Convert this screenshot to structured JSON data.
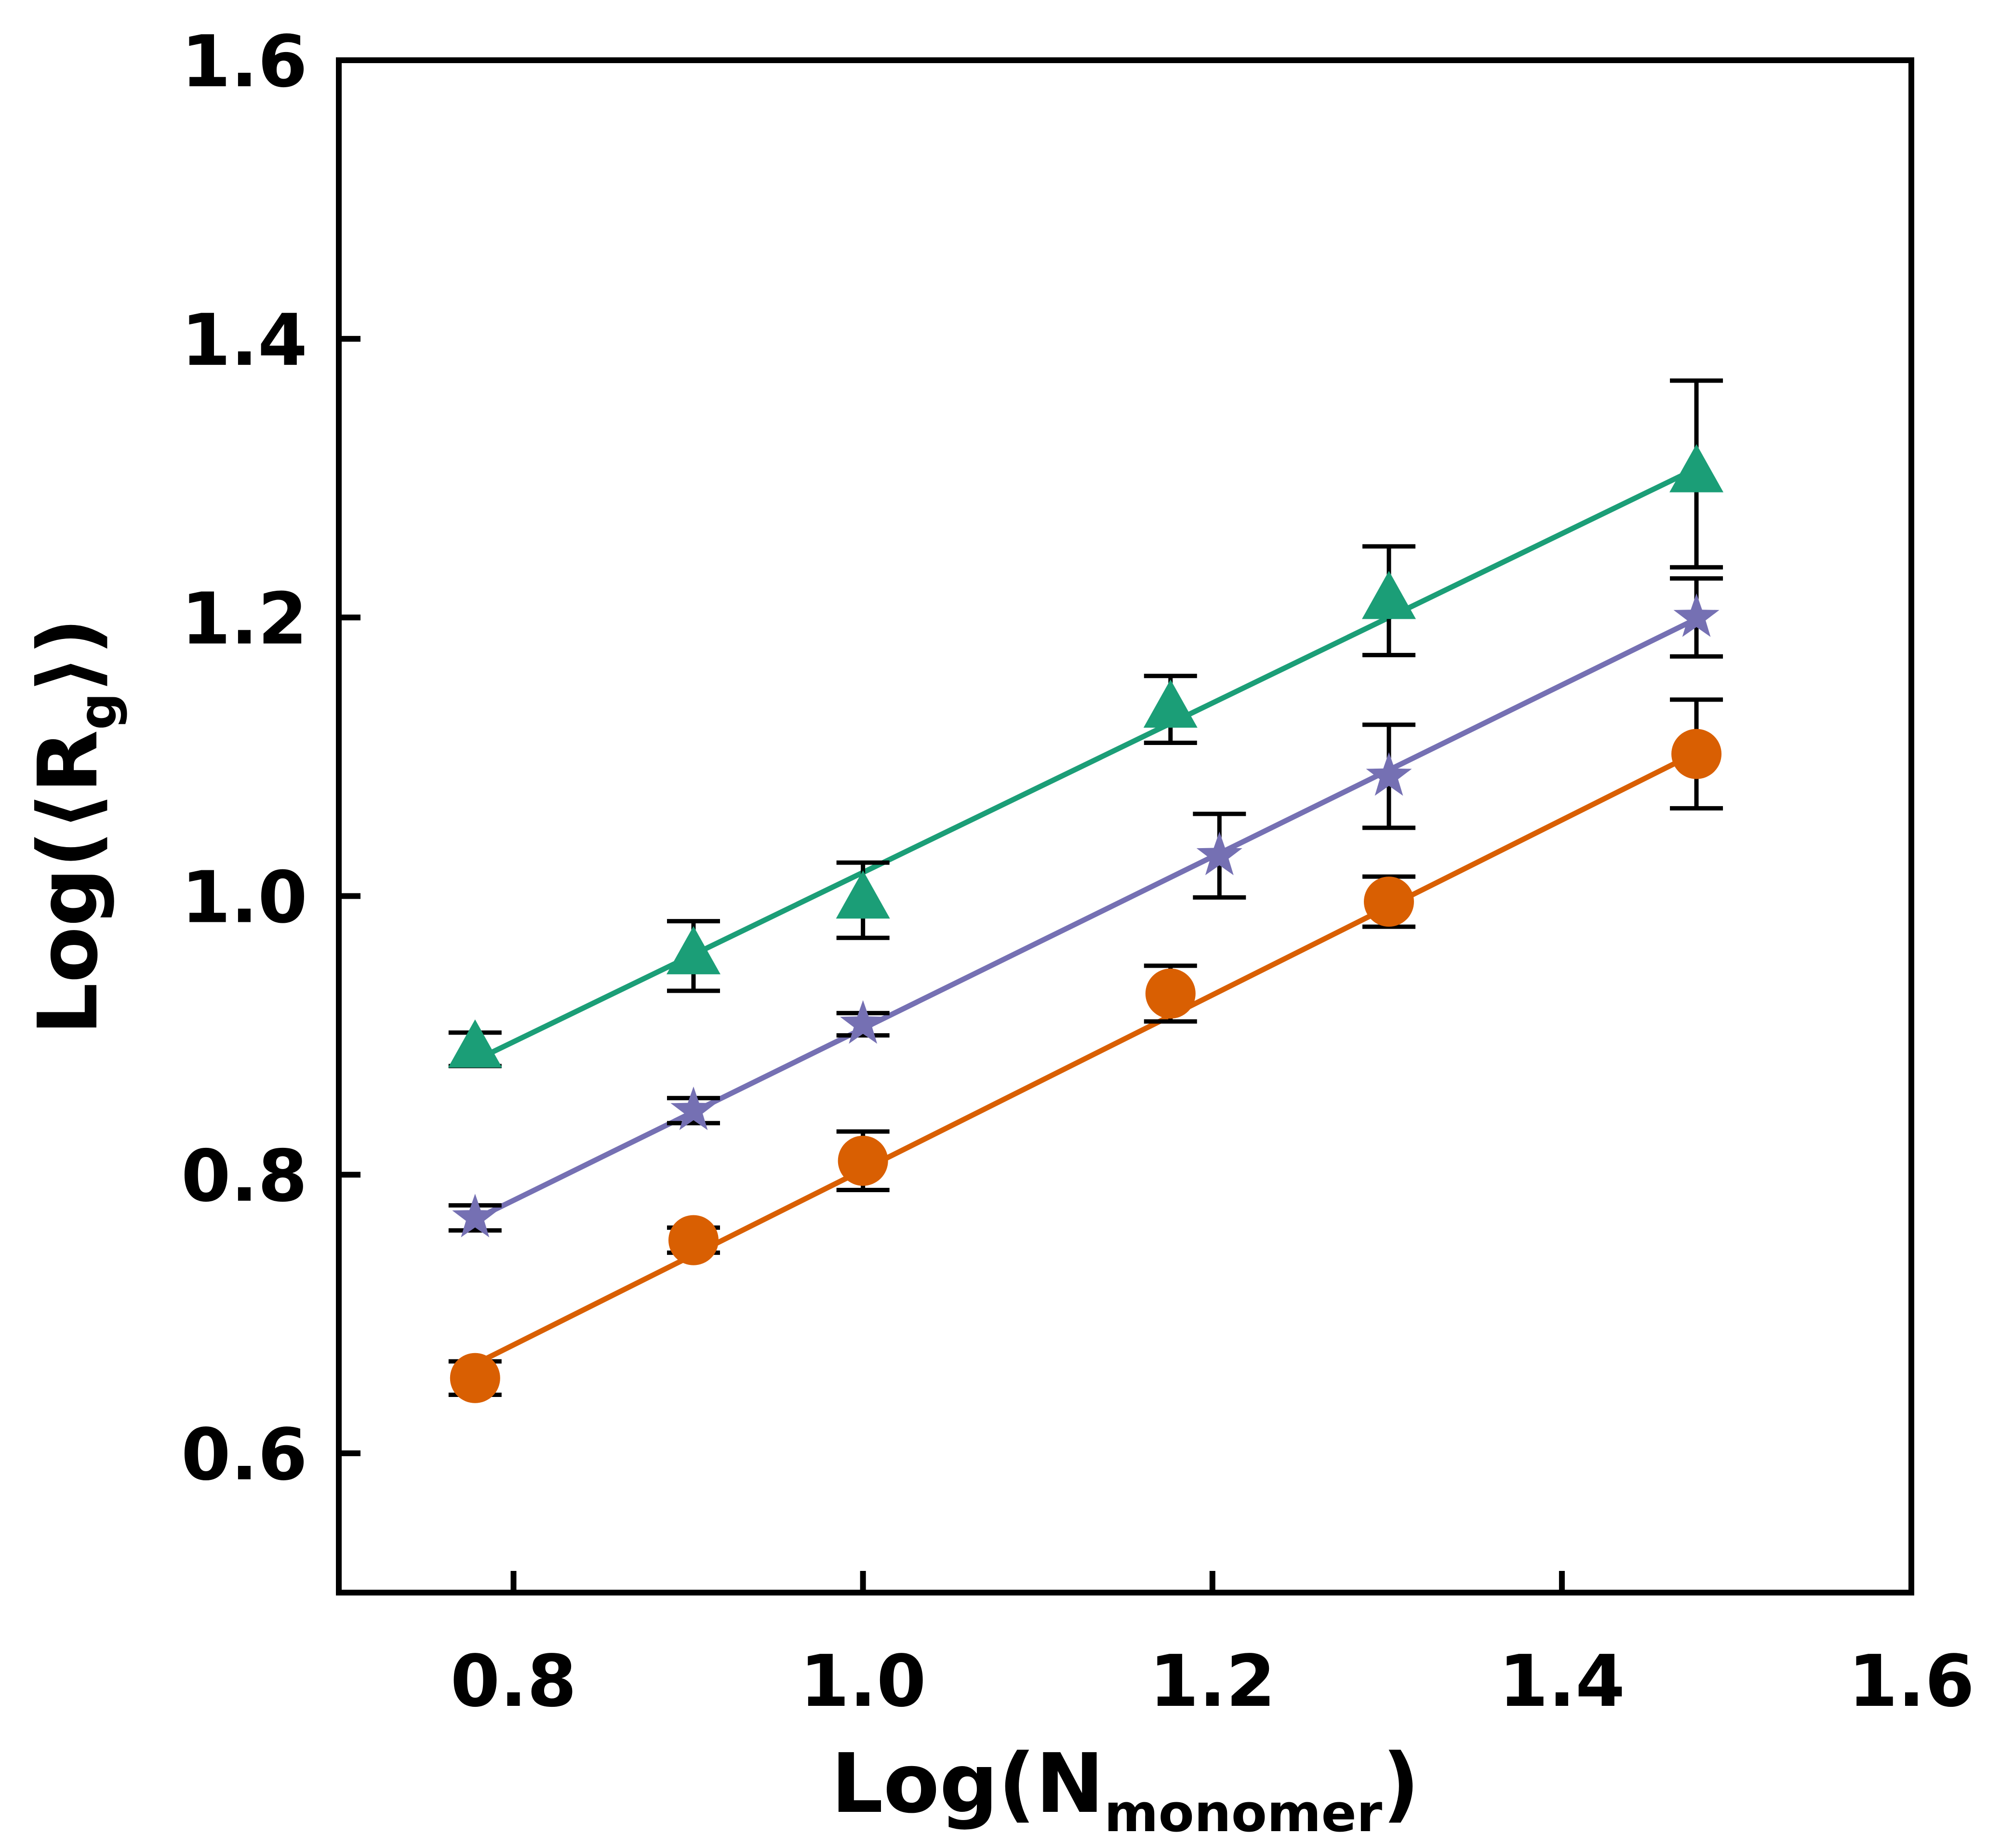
{
  "chart_data": {
    "type": "line",
    "title": "",
    "xlabel": "Log(N",
    "xlabel_sub": "monomer",
    "xlabel_end": ")",
    "ylabel": "Log(⟨R",
    "ylabel_sub": "g",
    "ylabel_end": "⟩)",
    "xlim": [
      0.7,
      1.6
    ],
    "ylim": [
      0.5,
      1.6
    ],
    "xticks": [
      "0.8",
      "1.0",
      "1.2",
      "1.4",
      "1.6"
    ],
    "yticks": [
      "0.6",
      "0.8",
      "1.0",
      "1.2",
      "1.4",
      "1.6"
    ],
    "grid": false,
    "legend": "none",
    "series": [
      {
        "marker": "triangle",
        "color": "#1b9e77",
        "points": [
          {
            "x": 0.778,
            "y": 0.89,
            "err": 0.012
          },
          {
            "x": 0.903,
            "y": 0.957,
            "err": 0.025
          },
          {
            "x": 1.0,
            "y": 0.997,
            "err": 0.027
          },
          {
            "x": 1.176,
            "y": 1.134,
            "err": 0.024
          },
          {
            "x": 1.301,
            "y": 1.212,
            "err": 0.039
          },
          {
            "x": 1.477,
            "y": 1.303,
            "err": 0.067
          }
        ],
        "fit": {
          "x": [
            0.778,
            1.477
          ],
          "y": [
            0.882,
            1.307
          ]
        }
      },
      {
        "marker": "star",
        "color": "#7570b3",
        "points": [
          {
            "x": 0.778,
            "y": 0.769,
            "err": 0.009
          },
          {
            "x": 0.903,
            "y": 0.846,
            "err": 0.009
          },
          {
            "x": 1.0,
            "y": 0.908,
            "err": 0.008
          },
          {
            "x": 1.204,
            "y": 1.029,
            "err": 0.03
          },
          {
            "x": 1.301,
            "y": 1.086,
            "err": 0.037
          },
          {
            "x": 1.477,
            "y": 1.2,
            "err": 0.028
          }
        ],
        "fit": {
          "x": [
            0.778,
            1.477
          ],
          "y": [
            0.768,
            1.199
          ]
        }
      },
      {
        "marker": "circle",
        "color": "#d95f02",
        "points": [
          {
            "x": 0.778,
            "y": 0.654,
            "err": 0.012
          },
          {
            "x": 0.903,
            "y": 0.753,
            "err": 0.009
          },
          {
            "x": 1.0,
            "y": 0.81,
            "err": 0.021
          },
          {
            "x": 1.176,
            "y": 0.93,
            "err": 0.02
          },
          {
            "x": 1.301,
            "y": 0.996,
            "err": 0.018
          },
          {
            "x": 1.477,
            "y": 1.102,
            "err": 0.039
          }
        ],
        "fit": {
          "x": [
            0.778,
            1.477
          ],
          "y": [
            0.664,
            1.103
          ]
        }
      }
    ]
  }
}
